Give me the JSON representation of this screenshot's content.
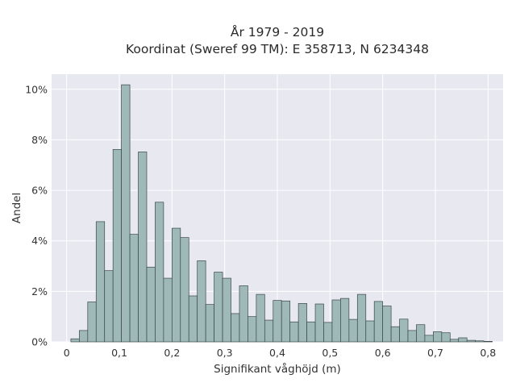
{
  "chart_data": {
    "type": "bar",
    "title": [
      "År 1979 - 2019",
      "Koordinat (Sweref 99 TM): E 358713, N 6234348"
    ],
    "xlabel": "Signifikant våghöjd (m)",
    "ylabel": "Andel",
    "xlim": [
      -0.0286,
      0.8286
    ],
    "ylim": [
      0,
      10.6
    ],
    "x_ticks": [
      0,
      0.1,
      0.2,
      0.3,
      0.4,
      0.5,
      0.6,
      0.7,
      0.8
    ],
    "x_tick_labels": [
      "0",
      "0,1",
      "0,2",
      "0,3",
      "0,4",
      "0,5",
      "0,6",
      "0,7",
      "0,8"
    ],
    "y_ticks": [
      0,
      2,
      4,
      6,
      8,
      10
    ],
    "y_tick_labels": [
      "0%",
      "2%",
      "4%",
      "6%",
      "8%",
      "10%"
    ],
    "grid": true,
    "bin_width": 0.016,
    "bin_start": 0.008,
    "values": [
      0.12,
      0.45,
      1.58,
      4.76,
      2.82,
      7.62,
      10.18,
      4.26,
      7.52,
      2.96,
      5.53,
      2.52,
      4.5,
      4.13,
      1.82,
      3.21,
      1.48,
      2.76,
      2.52,
      1.12,
      2.22,
      1.0,
      1.88,
      0.86,
      1.64,
      1.62,
      0.79,
      1.52,
      0.79,
      1.5,
      0.77,
      1.66,
      1.72,
      0.89,
      1.88,
      0.83,
      1.6,
      1.42,
      0.6,
      0.9,
      0.45,
      0.68,
      0.26,
      0.4,
      0.36,
      0.1,
      0.16,
      0.06,
      0.04,
      0.02
    ],
    "colors": {
      "plot_bg": "#e8e8f1",
      "bar_fill": "#9fb9b9",
      "bar_edge": "#3a4848",
      "grid": "#ffffff"
    }
  }
}
